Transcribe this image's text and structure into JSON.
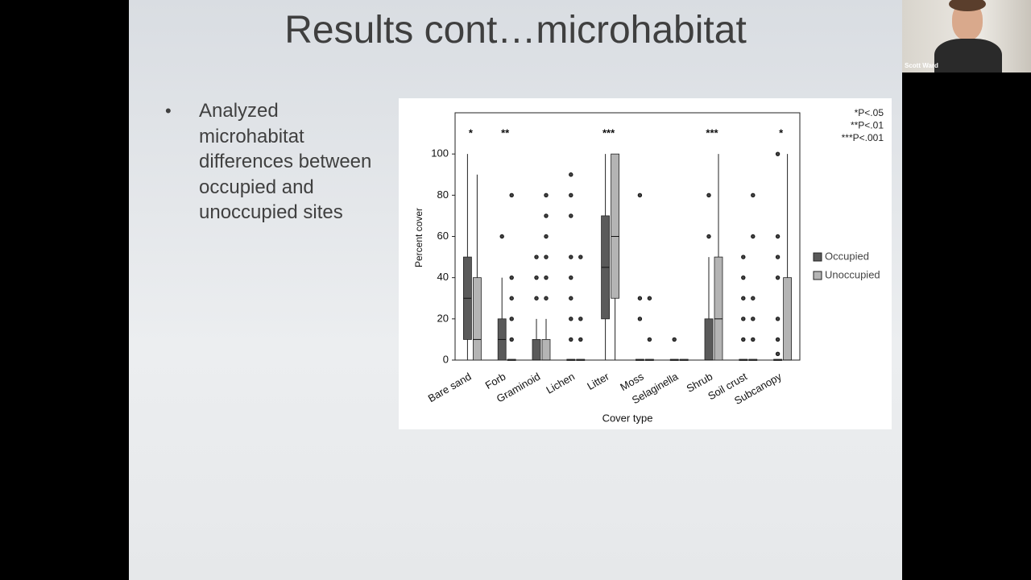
{
  "slide": {
    "title": "Results cont…microhabitat",
    "bullet": "Analyzed microhabitat differences between occupied and unoccupied sites"
  },
  "participant": {
    "name": "Scott Ward"
  },
  "chart_data": {
    "type": "box",
    "y_label": "Percent cover",
    "x_label": "Cover type",
    "categories": [
      "Bare sand",
      "Forb",
      "Graminoid",
      "Lichen",
      "Litter",
      "Moss",
      "Selaginella",
      "Shrub",
      "Soil crust",
      "Subcanopy"
    ],
    "significance": [
      "*",
      "**",
      null,
      null,
      "***",
      null,
      null,
      "***",
      null,
      "*"
    ],
    "annotations": [
      "*P<.05",
      "**P<.01",
      "***P<.001"
    ],
    "ylim": [
      0,
      120
    ],
    "yticks": [
      0,
      20,
      40,
      60,
      80,
      100
    ],
    "legend": "right",
    "series": [
      {
        "name": "Occupied",
        "color": "#5a5a5a",
        "min": [
          0,
          0,
          0,
          0,
          0,
          0,
          0,
          0,
          0,
          0
        ],
        "q1": [
          10,
          0,
          0,
          0,
          20,
          0,
          0,
          0,
          0,
          0
        ],
        "median": [
          30,
          10,
          0,
          0,
          45,
          0,
          0,
          0,
          0,
          0
        ],
        "q3": [
          50,
          20,
          10,
          0,
          70,
          0,
          0,
          20,
          0,
          0
        ],
        "max": [
          100,
          40,
          20,
          0,
          100,
          0,
          0,
          50,
          0,
          0
        ],
        "outliers": [
          [],
          [
            60
          ],
          [
            30,
            40,
            50
          ],
          [
            10,
            20,
            30,
            40,
            50,
            70,
            80,
            90
          ],
          [],
          [
            20,
            30,
            80
          ],
          [
            10
          ],
          [
            60,
            80
          ],
          [
            10,
            20,
            30,
            40,
            50
          ],
          [
            3,
            10,
            20,
            40,
            50,
            60,
            100
          ]
        ]
      },
      {
        "name": "Unoccupied",
        "color": "#b4b4b4",
        "min": [
          0,
          0,
          0,
          0,
          0,
          0,
          0,
          0,
          0,
          0
        ],
        "q1": [
          0,
          0,
          0,
          0,
          30,
          0,
          0,
          0,
          0,
          0
        ],
        "median": [
          10,
          0,
          0,
          0,
          60,
          0,
          0,
          20,
          0,
          0
        ],
        "q3": [
          40,
          0,
          10,
          0,
          100,
          0,
          0,
          50,
          0,
          40
        ],
        "max": [
          90,
          0,
          20,
          0,
          100,
          0,
          0,
          100,
          0,
          100
        ],
        "outliers": [
          [],
          [
            10,
            20,
            30,
            40,
            80
          ],
          [
            30,
            40,
            50,
            60,
            70,
            80
          ],
          [
            10,
            20,
            50
          ],
          [],
          [
            10,
            30
          ],
          [],
          [],
          [
            10,
            20,
            30,
            60,
            80
          ],
          []
        ]
      }
    ]
  }
}
